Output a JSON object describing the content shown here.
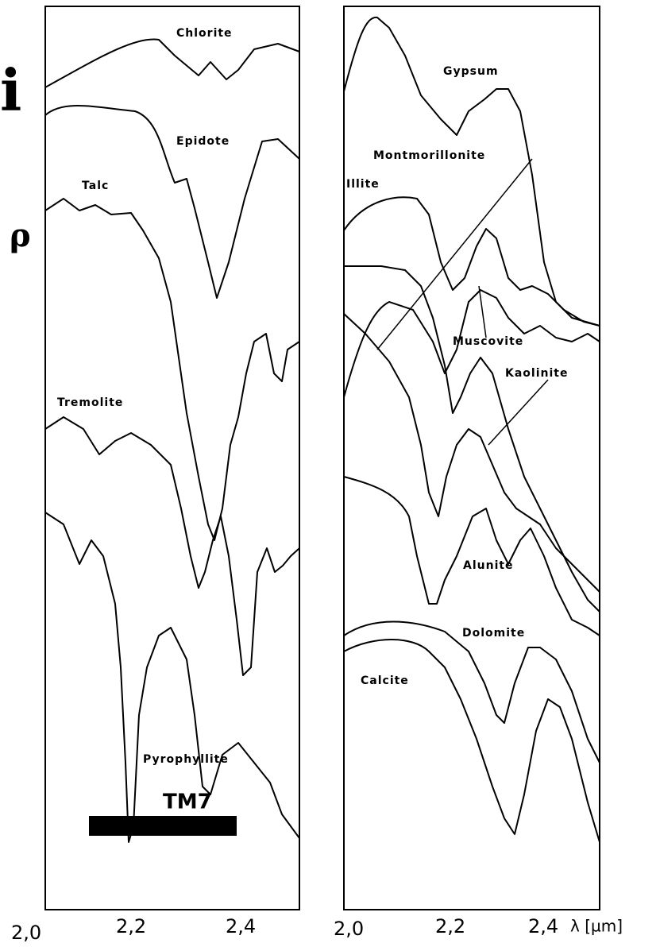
{
  "heading_fragment": "i",
  "y_symbol": "ρ",
  "left_panel": {
    "labels": [
      "Chlorite",
      "Epidote",
      "Talc",
      "Tremolite",
      "Pyrophyllite"
    ],
    "band": "TM7",
    "x_ticks": [
      "2,0",
      "2,2",
      "2,4"
    ]
  },
  "right_panel": {
    "labels": [
      "Gypsum",
      "Montmorillonite",
      "Illite",
      "Muscovite",
      "Kaolinite",
      "Alunite",
      "Dolomite",
      "Calcite"
    ],
    "x_ticks": [
      "2,0",
      "2,2",
      "2,4"
    ],
    "x_unit": "λ [µm]"
  }
}
